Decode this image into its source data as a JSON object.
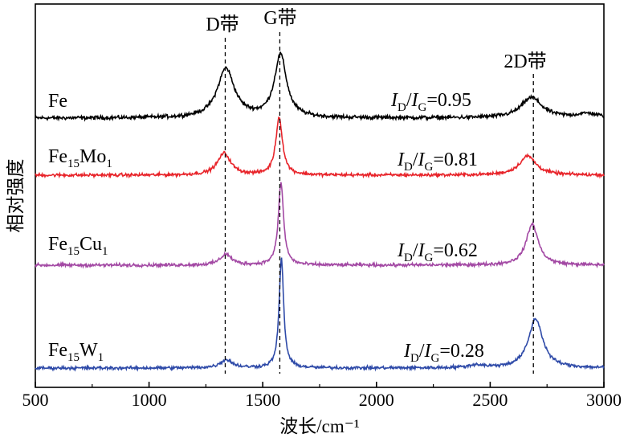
{
  "chart_data": {
    "type": "line",
    "xlabel": "波长/cm⁻¹",
    "ylabel": "相对强度",
    "xlim": [
      500,
      3000
    ],
    "xticks": [
      500,
      1000,
      1500,
      2000,
      2500,
      3000
    ],
    "grid": false,
    "band_markers": [
      {
        "name": "D带",
        "x": 1335
      },
      {
        "name": "G带",
        "x": 1575
      },
      {
        "name": "2D带",
        "x": 2690
      }
    ],
    "series": [
      {
        "name": "Fe",
        "label_main": "Fe",
        "label_parts": [
          {
            "text": "Fe",
            "sub": false
          }
        ],
        "color": "#000000",
        "id_ig": "0.95",
        "baseline": 0.0,
        "noise": 0.012,
        "peaks": [
          {
            "center": 1338,
            "height": 0.36,
            "width": 45
          },
          {
            "center": 1578,
            "height": 0.46,
            "width": 32
          },
          {
            "center": 2682,
            "height": 0.15,
            "width": 55
          },
          {
            "center": 2930,
            "height": 0.03,
            "width": 60
          }
        ]
      },
      {
        "name": "Fe15Mo1",
        "label_parts": [
          {
            "text": "Fe",
            "sub": false
          },
          {
            "text": "15",
            "sub": true
          },
          {
            "text": "Mo",
            "sub": false
          },
          {
            "text": "1",
            "sub": true
          }
        ],
        "color": "#e8242a",
        "id_ig": "0.81",
        "baseline": 0.0,
        "noise": 0.01,
        "peaks": [
          {
            "center": 1330,
            "height": 0.16,
            "width": 35
          },
          {
            "center": 1572,
            "height": 0.42,
            "width": 18
          },
          {
            "center": 2665,
            "height": 0.14,
            "width": 45
          }
        ]
      },
      {
        "name": "Fe15Cu1",
        "label_parts": [
          {
            "text": "Fe",
            "sub": false
          },
          {
            "text": "15",
            "sub": true
          },
          {
            "text": "Cu",
            "sub": false
          },
          {
            "text": "1",
            "sub": true
          }
        ],
        "color": "#a349a4",
        "id_ig": "0.62",
        "baseline": 0.0,
        "noise": 0.01,
        "peaks": [
          {
            "center": 1338,
            "height": 0.08,
            "width": 30
          },
          {
            "center": 1580,
            "height": 0.6,
            "width": 14
          },
          {
            "center": 2685,
            "height": 0.3,
            "width": 32
          }
        ]
      },
      {
        "name": "Fe15W1",
        "label_parts": [
          {
            "text": "Fe",
            "sub": false
          },
          {
            "text": "15",
            "sub": true
          },
          {
            "text": "W",
            "sub": false
          },
          {
            "text": "1",
            "sub": true
          }
        ],
        "color": "#2e4aa8",
        "id_ig": "0.28",
        "baseline": 0.0,
        "noise": 0.01,
        "peaks": [
          {
            "center": 1340,
            "height": 0.06,
            "width": 32
          },
          {
            "center": 1582,
            "height": 0.8,
            "width": 12
          },
          {
            "center": 2440,
            "height": 0.02,
            "width": 40
          },
          {
            "center": 2700,
            "height": 0.36,
            "width": 38
          }
        ]
      }
    ]
  }
}
